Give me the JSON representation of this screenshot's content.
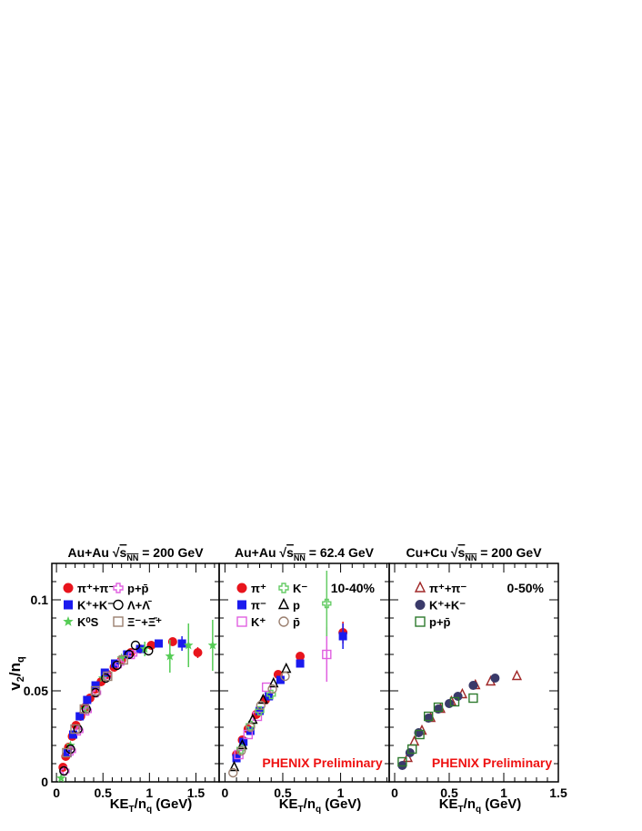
{
  "figure": {
    "ylabel_main": "v",
    "ylabel_sub1": "2",
    "ylabel_mid": "/n",
    "ylabel_sub2": "q",
    "xlabel_main": "KE",
    "xlabel_sub1": "T",
    "xlabel_mid": "/n",
    "xlabel_sub2": "q",
    "xlabel_tail": " (GeV)",
    "colors": {
      "red": "#e8141c",
      "blue": "#1a1aee",
      "green": "#55cc55",
      "magenta": "#e060e0",
      "lightgreen": "#66cc66",
      "brown": "#9b8070",
      "darkred": "#a02828",
      "navy": "#3a3a6a",
      "darkgreen": "#2d7a2d",
      "annotation_red": "#ee1111"
    }
  },
  "chart_data": [
    {
      "type": "scatter",
      "title_system": "Au+Au",
      "title_sqrt": "s",
      "title_sub": "NN",
      "title_energy": " = 200 GeV",
      "annotation": "",
      "xlim": [
        -0.05,
        1.75
      ],
      "ylim": [
        0,
        0.12
      ],
      "xticks": [
        "0",
        "0.5",
        "1",
        "1.5"
      ],
      "xtick_values": [
        0,
        0.5,
        1,
        1.5
      ],
      "yticks": [
        "0",
        "0.05",
        "0.1"
      ],
      "ytick_values": [
        0,
        0.05,
        0.1
      ],
      "legend": [
        {
          "marker": "circle-filled",
          "color": "red",
          "label": "π⁺+π⁻"
        },
        {
          "marker": "cross-open",
          "color": "magenta",
          "label": "p+p̄"
        },
        {
          "marker": "square-filled",
          "color": "blue",
          "label": "K⁺+K⁻"
        },
        {
          "marker": "circle-open",
          "color": "black",
          "label": "Λ+Λ̄"
        },
        {
          "marker": "star",
          "color": "green",
          "label": "K⁰S"
        },
        {
          "marker": "square-open",
          "color": "brown",
          "label": "Ξ⁻+Ξ̄⁺"
        }
      ],
      "series": [
        {
          "name": "π⁺+π⁻",
          "marker": "circle-filled",
          "color": "red",
          "x": [
            0.07,
            0.1,
            0.13,
            0.17,
            0.21,
            0.26,
            0.31,
            0.36,
            0.42,
            0.48,
            0.55,
            0.62,
            0.7,
            0.8,
            0.9,
            1.02,
            1.25,
            1.52
          ],
          "y": [
            0.008,
            0.014,
            0.019,
            0.025,
            0.031,
            0.036,
            0.041,
            0.046,
            0.051,
            0.055,
            0.059,
            0.063,
            0.067,
            0.071,
            0.073,
            0.075,
            0.077,
            0.071
          ],
          "err": [
            0,
            0,
            0,
            0,
            0,
            0,
            0,
            0,
            0,
            0,
            0,
            0,
            0,
            0,
            0,
            0,
            0,
            0.003
          ]
        },
        {
          "name": "K⁺+K⁻",
          "marker": "square-filled",
          "color": "blue",
          "x": [
            0.12,
            0.18,
            0.25,
            0.33,
            0.42,
            0.52,
            0.63,
            0.76,
            0.9,
            1.1,
            1.35
          ],
          "y": [
            0.016,
            0.026,
            0.036,
            0.045,
            0.053,
            0.06,
            0.065,
            0.07,
            0.073,
            0.076,
            0.076
          ],
          "err": [
            0,
            0,
            0,
            0,
            0,
            0,
            0,
            0,
            0,
            0.002,
            0.004
          ]
        },
        {
          "name": "K⁰S",
          "marker": "star",
          "color": "green",
          "x": [
            0.05,
            0.15,
            0.3,
            0.5,
            0.7,
            0.95,
            1.22,
            1.42,
            1.68
          ],
          "y": [
            0.002,
            0.02,
            0.04,
            0.057,
            0.068,
            0.073,
            0.069,
            0.075,
            0.075
          ],
          "err": [
            0,
            0,
            0,
            0,
            0,
            0.004,
            0.009,
            0.012,
            0.014
          ]
        },
        {
          "name": "p+p̄",
          "marker": "cross-open",
          "color": "magenta",
          "x": [
            0.09,
            0.16,
            0.24,
            0.33,
            0.43,
            0.55,
            0.68,
            0.82
          ],
          "y": [
            0.006,
            0.017,
            0.028,
            0.039,
            0.049,
            0.058,
            0.065,
            0.07
          ],
          "err": [
            0,
            0,
            0,
            0,
            0,
            0,
            0,
            0
          ]
        },
        {
          "name": "Λ+Λ̄",
          "marker": "circle-open",
          "color": "black",
          "x": [
            0.08,
            0.15,
            0.23,
            0.32,
            0.42,
            0.53,
            0.65,
            0.78,
            0.85,
            0.99
          ],
          "y": [
            0.006,
            0.018,
            0.029,
            0.04,
            0.049,
            0.057,
            0.064,
            0.07,
            0.075,
            0.072
          ],
          "err": [
            0,
            0,
            0,
            0,
            0,
            0,
            0,
            0,
            0,
            0
          ]
        },
        {
          "name": "Ξ⁻+Ξ̄⁺",
          "marker": "square-open",
          "color": "brown",
          "x": [
            0.11,
            0.2,
            0.3,
            0.42,
            0.55,
            0.72
          ],
          "y": [
            0.016,
            0.029,
            0.04,
            0.05,
            0.058,
            0.067
          ],
          "err": [
            0,
            0,
            0,
            0,
            0,
            0
          ]
        }
      ]
    },
    {
      "type": "scatter",
      "title_system": "Au+Au",
      "title_sqrt": "s",
      "title_sub": "NN",
      "title_energy": " = 62.4 GeV",
      "annotation": "10-40%",
      "footer": "PHENIX Preliminary",
      "xlim": [
        -0.05,
        1.42
      ],
      "ylim": [
        0,
        0.12
      ],
      "xticks": [
        "0",
        "0.5",
        "1"
      ],
      "xtick_values": [
        0,
        0.5,
        1
      ],
      "yticks": [],
      "ytick_values": [
        0,
        0.05,
        0.1
      ],
      "legend": [
        {
          "marker": "circle-filled",
          "color": "red",
          "label": "π⁺"
        },
        {
          "marker": "cross-open",
          "color": "lightgreen",
          "label": "K⁻"
        },
        {
          "marker": "square-filled",
          "color": "blue",
          "label": "π⁻"
        },
        {
          "marker": "triangle-open",
          "color": "black",
          "label": "p"
        },
        {
          "marker": "square-open",
          "color": "magenta",
          "label": "K⁺"
        },
        {
          "marker": "circle-open",
          "color": "brown",
          "label": "p̄"
        }
      ],
      "series": [
        {
          "name": "π⁺",
          "marker": "circle-filled",
          "color": "red",
          "x": [
            0.1,
            0.15,
            0.2,
            0.27,
            0.35,
            0.46,
            0.65,
            1.02
          ],
          "y": [
            0.015,
            0.023,
            0.029,
            0.037,
            0.045,
            0.059,
            0.069,
            0.082
          ],
          "err": [
            0,
            0,
            0,
            0,
            0,
            0,
            0.002,
            0.006
          ]
        },
        {
          "name": "π⁻",
          "marker": "square-filled",
          "color": "blue",
          "x": [
            0.1,
            0.16,
            0.22,
            0.3,
            0.38,
            0.48,
            0.65,
            1.02
          ],
          "y": [
            0.013,
            0.022,
            0.028,
            0.039,
            0.047,
            0.056,
            0.065,
            0.08
          ],
          "err": [
            0,
            0,
            0,
            0,
            0,
            0,
            0.002,
            0.007
          ]
        },
        {
          "name": "K⁺",
          "marker": "square-open",
          "color": "magenta",
          "x": [
            0.12,
            0.2,
            0.28,
            0.36,
            0.88
          ],
          "y": [
            0.015,
            0.026,
            0.036,
            0.052,
            0.07
          ],
          "err": [
            0,
            0,
            0,
            0,
            0.015
          ]
        },
        {
          "name": "K⁻",
          "marker": "cross-open",
          "color": "lightgreen",
          "x": [
            0.14,
            0.22,
            0.3,
            0.4,
            0.88
          ],
          "y": [
            0.018,
            0.031,
            0.039,
            0.048,
            0.098
          ],
          "err": [
            0,
            0,
            0,
            0,
            0.018
          ]
        },
        {
          "name": "p",
          "marker": "triangle-open",
          "color": "black",
          "x": [
            0.08,
            0.15,
            0.24,
            0.33,
            0.42,
            0.53
          ],
          "y": [
            0.008,
            0.02,
            0.034,
            0.045,
            0.054,
            0.062
          ],
          "err": [
            0,
            0,
            0,
            0,
            0,
            0
          ]
        },
        {
          "name": "p̄",
          "marker": "circle-open",
          "color": "brown",
          "x": [
            0.07,
            0.14,
            0.22,
            0.31,
            0.41,
            0.52
          ],
          "y": [
            0.005,
            0.017,
            0.03,
            0.042,
            0.051,
            0.058
          ],
          "err": [
            0,
            0,
            0,
            0,
            0,
            0
          ]
        }
      ]
    },
    {
      "type": "scatter",
      "title_system": "Cu+Cu",
      "title_sqrt": "s",
      "title_sub": "NN",
      "title_energy": " = 200 GeV",
      "annotation": "0-50%",
      "footer": "PHENIX Preliminary",
      "xlim": [
        -0.05,
        1.5
      ],
      "ylim": [
        0,
        0.12
      ],
      "xticks": [
        "0",
        "0.5",
        "1",
        "1.5"
      ],
      "xtick_values": [
        0,
        0.5,
        1,
        1.5
      ],
      "yticks": [],
      "ytick_values": [
        0,
        0.05,
        0.1
      ],
      "legend": [
        {
          "marker": "triangle-open",
          "color": "darkred",
          "label": "π⁺+π⁻"
        },
        {
          "marker": "circle-filled",
          "color": "navy",
          "label": "K⁺+K⁻"
        },
        {
          "marker": "square-open",
          "color": "darkgreen",
          "label": "p+p̄"
        }
      ],
      "series": [
        {
          "name": "π⁺+π⁻",
          "marker": "triangle-open",
          "color": "darkred",
          "x": [
            0.12,
            0.18,
            0.25,
            0.33,
            0.42,
            0.52,
            0.62,
            0.74,
            0.88,
            1.12
          ],
          "y": [
            0.013,
            0.022,
            0.028,
            0.035,
            0.04,
            0.044,
            0.048,
            0.053,
            0.055,
            0.058
          ],
          "err": [
            0,
            0,
            0,
            0,
            0,
            0,
            0,
            0,
            0,
            0
          ]
        },
        {
          "name": "K⁺+K⁻",
          "marker": "circle-filled",
          "color": "navy",
          "x": [
            0.07,
            0.14,
            0.22,
            0.31,
            0.4,
            0.5,
            0.58,
            0.72,
            0.92
          ],
          "y": [
            0.009,
            0.016,
            0.027,
            0.035,
            0.04,
            0.043,
            0.047,
            0.053,
            0.057
          ],
          "err": [
            0,
            0,
            0,
            0,
            0,
            0,
            0,
            0,
            0
          ]
        },
        {
          "name": "p+p̄",
          "marker": "square-open",
          "color": "darkgreen",
          "x": [
            0.07,
            0.16,
            0.23,
            0.31,
            0.4,
            0.55,
            0.72
          ],
          "y": [
            0.011,
            0.018,
            0.026,
            0.036,
            0.041,
            0.044,
            0.046
          ],
          "err": [
            0,
            0,
            0,
            0,
            0,
            0,
            0
          ]
        }
      ]
    }
  ]
}
